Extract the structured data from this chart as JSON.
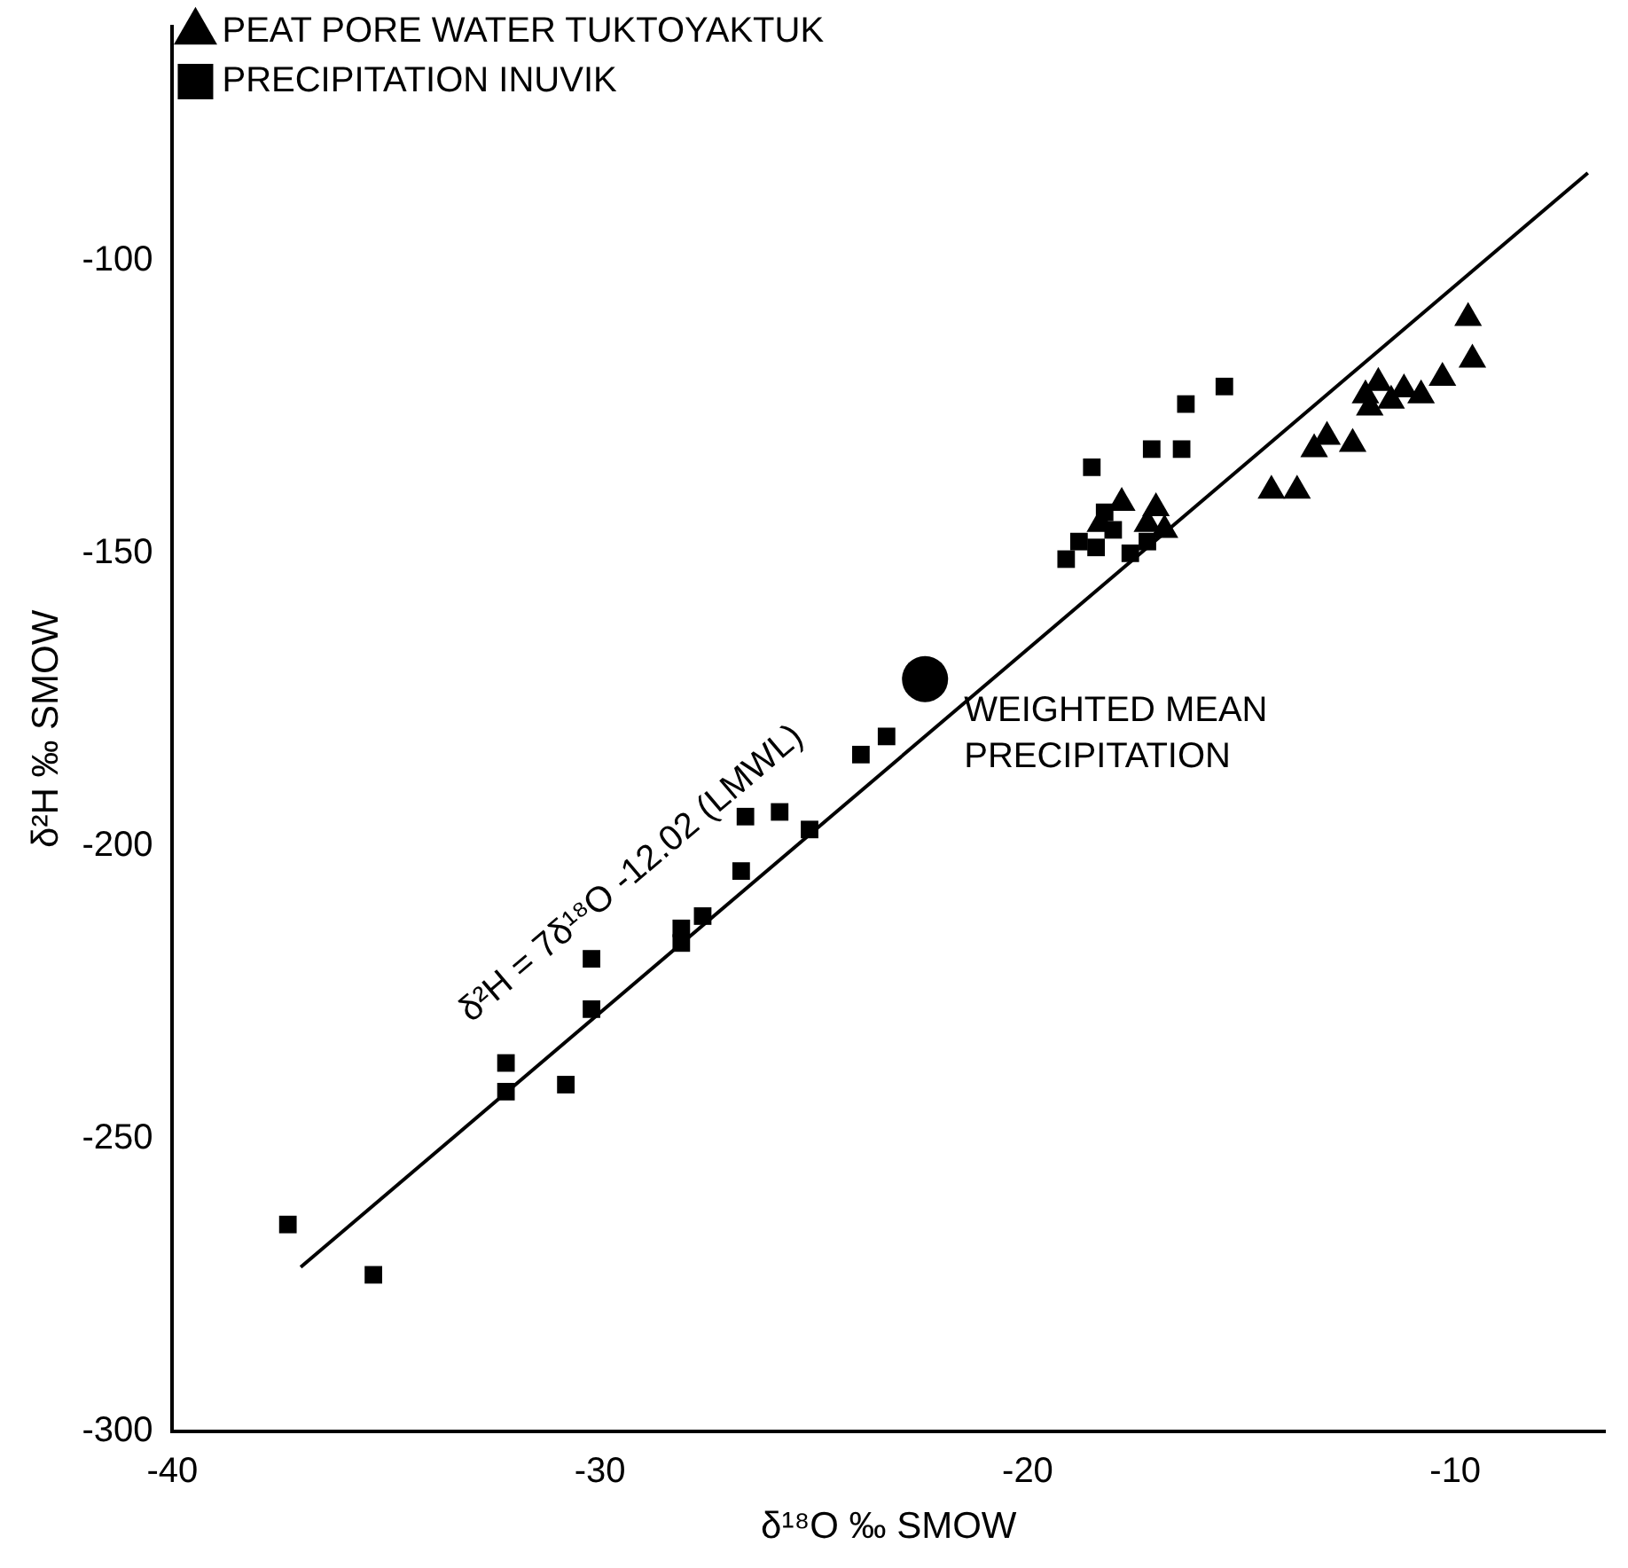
{
  "chart_data": {
    "type": "scatter",
    "xlabel": "δ¹⁸O ‰ SMOW",
    "ylabel": "δ²H ‰ SMOW",
    "xlim": [
      -40,
      -6.5
    ],
    "ylim": [
      -300,
      -60
    ],
    "xticks": [
      -40,
      -30,
      -20,
      -10
    ],
    "yticks": [
      -300,
      -250,
      -200,
      -150,
      -100
    ],
    "grid": false,
    "legend": "top left",
    "series": [
      {
        "name": "PEAT PORE WATER TUKTOYAKTUK",
        "color": "#000000",
        "marker": "triangle",
        "x": [
          -18.3,
          -17.8,
          -17.0,
          -17.2,
          -16.8,
          -14.3,
          -13.7,
          -13.3,
          -13.0,
          -12.4,
          -12.1,
          -11.8,
          -11.2,
          -11.5,
          -10.3,
          -9.6,
          -9.7,
          -12.0,
          -10.8
        ],
        "values": [
          -145,
          -141.4,
          -142.3,
          -145,
          -146,
          -139.3,
          -139.3,
          -132.2,
          -130.1,
          -131.3,
          -123,
          -120.9,
          -122,
          -123.9,
          -120,
          -116.9,
          -109.8,
          -125.1,
          -123
        ]
      },
      {
        "name": "PRECIPITATION INUVIK",
        "color": "#000000",
        "marker": "square",
        "x": [
          -37.3,
          -35.3,
          -32.2,
          -32.2,
          -30.8,
          -30.2,
          -30.2,
          -28.1,
          -27.6,
          -28.1,
          -26.7,
          -26.6,
          -25.8,
          -25.1,
          -23.9,
          -23.3,
          -18.5,
          -16.3,
          -15.4,
          -17.1,
          -16.4,
          -19.1,
          -18.8,
          -18.4,
          -18.0,
          -17.6,
          -18.2,
          -17.2
        ],
        "values": [
          -264.7,
          -273.3,
          -237.1,
          -242,
          -240.8,
          -227.9,
          -219.3,
          -214.1,
          -212,
          -216.6,
          -204.3,
          -195,
          -194.2,
          -197.2,
          -184.4,
          -181.3,
          -135.3,
          -124.5,
          -121.5,
          -132.2,
          -132.2,
          -151,
          -148,
          -149,
          -146,
          -150,
          -143,
          -148
        ]
      },
      {
        "type": "line",
        "color": "#000000",
        "marker": "none",
        "x": [
          -37.0,
          -6.9
        ],
        "values": [
          -272,
          -85
        ]
      },
      {
        "color": "#000000",
        "marker": "circle",
        "x": [
          -22.4
        ],
        "values": [
          -171.5
        ]
      }
    ],
    "annotations": [
      "δ²H = 7δ¹⁸O -12.02 (LMWL)",
      {
        "text": "WEIGHTED MEAN PRECIPITATION",
        "x": -22.4,
        "y": -171.5
      }
    ]
  }
}
